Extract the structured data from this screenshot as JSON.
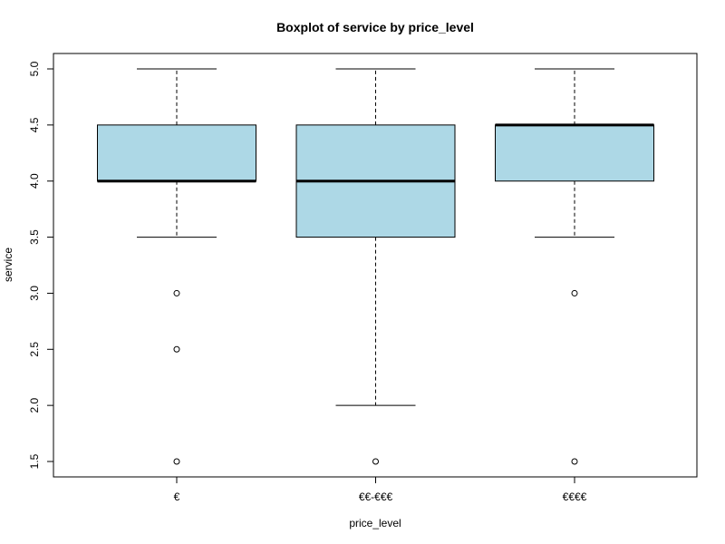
{
  "chart_data": {
    "type": "boxplot",
    "title": "Boxplot of service by price_level",
    "xlabel": "price_level",
    "ylabel": "service",
    "categories": [
      "€",
      "€€-€€€",
      "€€€€"
    ],
    "y_ticks": [
      "1.5",
      "2.0",
      "2.5",
      "3.0",
      "3.5",
      "4.0",
      "4.5",
      "5.0"
    ],
    "ylim": [
      1.5,
      5.0
    ],
    "box_color": "#add8e6",
    "boxes": [
      {
        "category": "€",
        "whisker_low": 3.5,
        "q1": 4.0,
        "median": 4.0,
        "q3": 4.5,
        "whisker_high": 5.0,
        "outliers": [
          3.0,
          2.5,
          1.5
        ]
      },
      {
        "category": "€€-€€€",
        "whisker_low": 2.0,
        "q1": 3.5,
        "median": 4.0,
        "q3": 4.5,
        "whisker_high": 5.0,
        "outliers": [
          1.5
        ]
      },
      {
        "category": "€€€€",
        "whisker_low": 3.5,
        "q1": 4.0,
        "median": 4.5,
        "q3": 4.5,
        "whisker_high": 5.0,
        "outliers": [
          3.0,
          1.5
        ]
      }
    ]
  }
}
